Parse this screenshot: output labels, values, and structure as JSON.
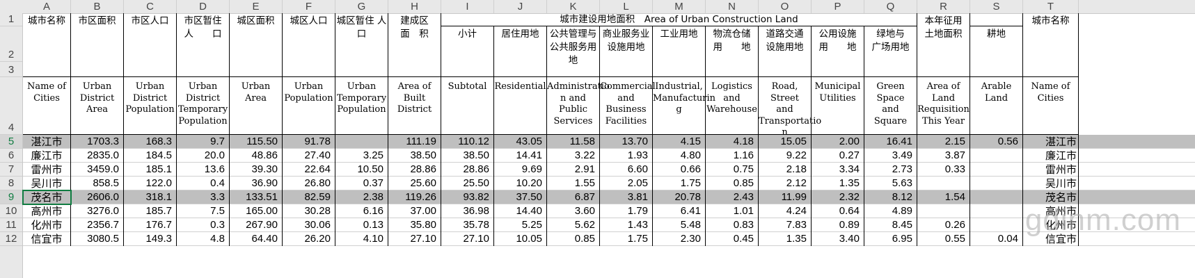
{
  "columns": [
    "A",
    "B",
    "C",
    "D",
    "E",
    "F",
    "G",
    "H",
    "I",
    "J",
    "K",
    "L",
    "M",
    "N",
    "O",
    "P",
    "Q",
    "R",
    "S",
    "T"
  ],
  "row_numbers": [
    "1",
    "2",
    "3",
    "4",
    "5",
    "6",
    "7",
    "8",
    "9",
    "10",
    "11",
    "12"
  ],
  "headers": {
    "cn": {
      "A": "城市名称",
      "B": "市区面积",
      "C": "市区人口",
      "D": "市区暂住\n人　　口",
      "E": "城区面积",
      "F": "城区人口",
      "G": "城区暂住 人\n口",
      "H": "建成区\n面　积",
      "group": "城市建设用地面积　Area of Urban Construction Land",
      "I": "小计",
      "J": "居住用地",
      "K": "公共管理与\n公共服务用\n地",
      "L": "商业服务业\n设施用地",
      "M": "工业用地",
      "N": "物流仓储\n用　　地",
      "O": "道路交通\n设施用地",
      "P": "公用设施\n用　　地",
      "Q": "绿地与\n广场用地",
      "R": "本年征用\n土地面积",
      "S": "耕地",
      "T": "城市名称"
    },
    "en": {
      "A": "Name of\nCities",
      "B": "Urban\nDistrict\nArea",
      "C": "Urban\nDistrict\nPopulation",
      "D": "Urban\nDistrict\nTemporary\nPopulation",
      "E": "Urban\nArea",
      "F": "Urban\nPopulation",
      "G": "Urban\nTemporary\nPopulation",
      "H": "Area of\nBuilt\nDistrict",
      "I": "Subtotal",
      "J": "Residential",
      "K": "Administratio\nn and\nPublic\nServices",
      "L": "Commercial\nand\nBusiness\nFacilities",
      "M": "Industrial,\nManufacturin\ng",
      "N": "Logistics\nand\nWarehouse",
      "O": "Road, Street\nand\nTransportatio\nn",
      "P": "Municipal\nUtilities",
      "Q": "Green\nSpace\nand\nSquare",
      "R": "Area of\nLand\nRequisition\nThis Year",
      "S": "Arable\nLand",
      "T": "Name of\nCities"
    }
  },
  "rows": [
    {
      "row": "5",
      "shaded": true,
      "cells": [
        "湛江市",
        "1703.3",
        "168.3",
        "9.7",
        "115.50",
        "91.78",
        "",
        "111.19",
        "110.12",
        "43.05",
        "11.58",
        "13.70",
        "4.15",
        "4.18",
        "15.05",
        "2.00",
        "16.41",
        "2.15",
        "0.56",
        "湛江市"
      ]
    },
    {
      "row": "6",
      "shaded": false,
      "cells": [
        "廉江市",
        "2835.0",
        "184.5",
        "20.0",
        "48.86",
        "27.40",
        "3.25",
        "38.50",
        "38.50",
        "14.41",
        "3.22",
        "1.93",
        "4.80",
        "1.16",
        "9.22",
        "0.27",
        "3.49",
        "3.87",
        "",
        "廉江市"
      ]
    },
    {
      "row": "7",
      "shaded": false,
      "cells": [
        "雷州市",
        "3459.0",
        "185.1",
        "13.6",
        "39.30",
        "22.64",
        "10.50",
        "28.86",
        "28.86",
        "9.69",
        "2.91",
        "6.60",
        "0.66",
        "0.75",
        "2.18",
        "3.34",
        "2.73",
        "0.33",
        "",
        "雷州市"
      ]
    },
    {
      "row": "8",
      "shaded": false,
      "cells": [
        "吴川市",
        "858.5",
        "122.0",
        "0.4",
        "36.90",
        "26.80",
        "0.37",
        "25.60",
        "25.50",
        "10.20",
        "1.55",
        "2.05",
        "1.75",
        "0.85",
        "2.12",
        "1.35",
        "5.63",
        "",
        "",
        "吴川市"
      ]
    },
    {
      "row": "9",
      "shaded": true,
      "cells": [
        "茂名市",
        "2606.0",
        "318.1",
        "3.3",
        "133.51",
        "82.59",
        "2.38",
        "119.26",
        "93.82",
        "37.50",
        "6.87",
        "3.81",
        "20.78",
        "2.43",
        "11.99",
        "2.32",
        "8.12",
        "1.54",
        "",
        "茂名市"
      ]
    },
    {
      "row": "10",
      "shaded": false,
      "cells": [
        "高州市",
        "3276.0",
        "185.7",
        "7.5",
        "165.00",
        "30.28",
        "6.16",
        "37.00",
        "36.98",
        "14.40",
        "3.60",
        "1.79",
        "6.41",
        "1.01",
        "4.24",
        "0.64",
        "4.89",
        "",
        "",
        "高州市"
      ]
    },
    {
      "row": "11",
      "shaded": false,
      "cells": [
        "化州市",
        "2356.7",
        "176.7",
        "0.3",
        "267.90",
        "30.06",
        "0.13",
        "35.80",
        "35.78",
        "5.25",
        "5.62",
        "1.43",
        "5.48",
        "0.83",
        "7.83",
        "0.89",
        "8.45",
        "0.26",
        "",
        "化州市"
      ]
    },
    {
      "row": "12",
      "shaded": false,
      "cells": [
        "信宜市",
        "3080.5",
        "149.3",
        "4.8",
        "64.40",
        "26.20",
        "4.10",
        "27.10",
        "27.10",
        "10.05",
        "0.85",
        "1.75",
        "2.30",
        "0.45",
        "1.35",
        "3.40",
        "6.95",
        "0.55",
        "0.04",
        "信宜市"
      ]
    }
  ],
  "watermark": "gdinm.com",
  "colors": {
    "shade": "#bfbfbf",
    "active": "#107c41",
    "header_bg": "#e8e8e8"
  }
}
